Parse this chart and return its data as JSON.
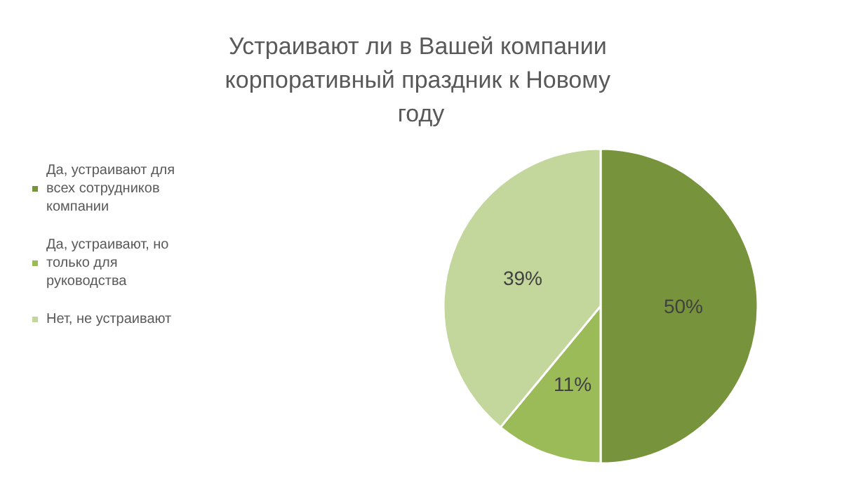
{
  "chart_data": {
    "type": "pie",
    "title": "Устраивают ли в Вашей компании корпоративный праздник к Новому году",
    "categories": [
      "Да, устраивают для всех сотрудников компании",
      "Да, устраивают, но только для руководства",
      "Нет, не устраивают"
    ],
    "values": [
      50,
      11,
      39
    ],
    "colors": [
      "#77933c",
      "#9bbb59",
      "#c3d69b"
    ],
    "value_labels": [
      "50%",
      "11%",
      "39%"
    ],
    "legend": "left"
  }
}
